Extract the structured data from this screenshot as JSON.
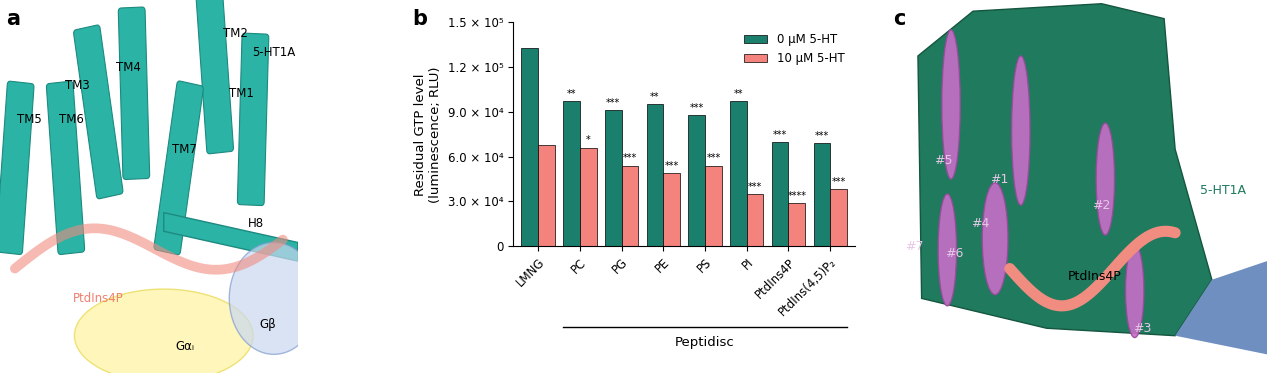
{
  "chart_data": {
    "type": "bar",
    "panel_label": "b",
    "categories": [
      "LMNG",
      "PC",
      "PG",
      "PE",
      "PS",
      "PI",
      "PtdIns4P",
      "PtdIns(4,5)P₂"
    ],
    "series": [
      {
        "name": "0 μM 5-HT",
        "color": "#1b7f6e",
        "values": [
          133000,
          97000,
          91000,
          95000,
          88000,
          97000,
          70000,
          69000
        ],
        "significance": [
          null,
          "**",
          "***",
          "**",
          "***",
          "**",
          "***",
          "***"
        ]
      },
      {
        "name": "10 μM 5-HT",
        "color": "#f4837d",
        "values": [
          68000,
          66000,
          54000,
          49000,
          54000,
          35000,
          29000,
          38000
        ],
        "significance": [
          null,
          "*",
          "***",
          "***",
          "***",
          "***",
          "****",
          "***"
        ]
      }
    ],
    "y_label": "Residual GTP level\n(luminescence; RLU)",
    "ylim": [
      0,
      150000
    ],
    "yticks": [
      0,
      {
        "value": 30000,
        "label": "3.0 × 10⁴"
      },
      {
        "value": 60000,
        "label": "6.0 × 10⁴"
      },
      {
        "value": 90000,
        "label": "9.0 × 10⁴"
      },
      {
        "value": 120000,
        "label": "1.2 × 10⁵"
      },
      {
        "value": 150000,
        "label": "1.5 × 10⁵"
      }
    ],
    "group_label": {
      "text": "Peptidisc",
      "from": "PC",
      "to": "PtdIns(4,5)P₂"
    },
    "legend": "upper right",
    "grid": false
  },
  "panel_a": {
    "panel_label": "a",
    "labels": [
      "TM5",
      "TM6",
      "TM3",
      "TM4",
      "TM2",
      "TM1",
      "5-HT1A",
      "TM7",
      "PtdIns4P",
      "H8",
      "Gαᵢ",
      "Gβ"
    ]
  },
  "panel_c": {
    "panel_label": "c",
    "labels": [
      "#5",
      "#1",
      "#2",
      "#4",
      "#6",
      "#7",
      "#3",
      "PtdIns4P",
      "5-HT1A"
    ]
  }
}
